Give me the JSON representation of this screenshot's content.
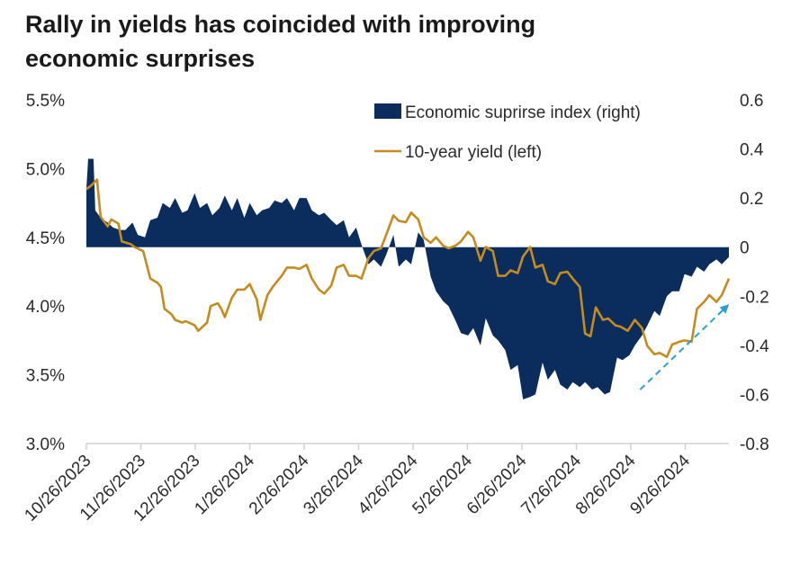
{
  "chart_data": {
    "type": "line",
    "title": "Rally in yields has coincided with improving economic surprises",
    "title_lines": [
      "Rally in yields has coincided with improving",
      "economic surprises"
    ],
    "x_tick_labels": [
      "10/26/2023",
      "11/26/2023",
      "12/26/2023",
      "1/26/2024",
      "2/26/2024",
      "3/26/2024",
      "4/26/2024",
      "5/26/2024",
      "6/26/2024",
      "7/26/2024",
      "8/26/2024",
      "9/26/2024"
    ],
    "x_range": [
      "2023-10-26",
      "2024-10-22"
    ],
    "y_left": {
      "label": "",
      "ticks": [
        "3.0%",
        "3.5%",
        "4.0%",
        "4.5%",
        "5.0%",
        "5.5%"
      ],
      "range": [
        3.0,
        5.5
      ]
    },
    "y_right": {
      "label": "",
      "ticks": [
        "-0.8",
        "-0.6",
        "-0.4",
        "-0.2",
        "0",
        "0.2",
        "0.4",
        "0.6"
      ],
      "range": [
        -0.8,
        0.6
      ]
    },
    "legend": {
      "placement": "top-right"
    },
    "grid": false,
    "series": [
      {
        "name": "Economic suprirse index (right)",
        "kind": "area",
        "axis": "right",
        "color": "#0b2d5e",
        "points": [
          [
            "2023-10-26",
            0.24
          ],
          [
            "2023-10-27",
            0.36
          ],
          [
            "2023-10-30",
            0.36
          ],
          [
            "2023-10-31",
            0.15
          ],
          [
            "2023-11-03",
            0.12
          ],
          [
            "2023-11-07",
            0.1
          ],
          [
            "2023-11-10",
            0.08
          ],
          [
            "2023-11-14",
            0.07
          ],
          [
            "2023-11-17",
            0.07
          ],
          [
            "2023-11-21",
            0.1
          ],
          [
            "2023-11-24",
            0.05
          ],
          [
            "2023-11-28",
            0.04
          ],
          [
            "2023-12-01",
            0.11
          ],
          [
            "2023-12-05",
            0.12
          ],
          [
            "2023-12-08",
            0.18
          ],
          [
            "2023-12-12",
            0.16
          ],
          [
            "2023-12-15",
            0.2
          ],
          [
            "2023-12-19",
            0.14
          ],
          [
            "2023-12-22",
            0.15
          ],
          [
            "2023-12-26",
            0.22
          ],
          [
            "2023-12-29",
            0.16
          ],
          [
            "2024-01-02",
            0.18
          ],
          [
            "2024-01-05",
            0.13
          ],
          [
            "2024-01-09",
            0.16
          ],
          [
            "2024-01-12",
            0.21
          ],
          [
            "2024-01-16",
            0.15
          ],
          [
            "2024-01-19",
            0.2
          ],
          [
            "2024-01-23",
            0.12
          ],
          [
            "2024-01-26",
            0.18
          ],
          [
            "2024-01-30",
            0.13
          ],
          [
            "2024-02-02",
            0.15
          ],
          [
            "2024-02-06",
            0.16
          ],
          [
            "2024-02-09",
            0.19
          ],
          [
            "2024-02-13",
            0.18
          ],
          [
            "2024-02-16",
            0.2
          ],
          [
            "2024-02-20",
            0.15
          ],
          [
            "2024-02-23",
            0.2
          ],
          [
            "2024-02-27",
            0.2
          ],
          [
            "2024-03-01",
            0.15
          ],
          [
            "2024-03-05",
            0.13
          ],
          [
            "2024-03-08",
            0.14
          ],
          [
            "2024-03-12",
            0.11
          ],
          [
            "2024-03-15",
            0.09
          ],
          [
            "2024-03-19",
            0.11
          ],
          [
            "2024-03-22",
            0.04
          ],
          [
            "2024-03-26",
            0.08
          ],
          [
            "2024-03-29",
            0.01
          ],
          [
            "2024-04-02",
            -0.07
          ],
          [
            "2024-04-05",
            -0.05
          ],
          [
            "2024-04-09",
            -0.08
          ],
          [
            "2024-04-12",
            -0.03
          ],
          [
            "2024-04-16",
            0.05
          ],
          [
            "2024-04-19",
            -0.08
          ],
          [
            "2024-04-23",
            -0.05
          ],
          [
            "2024-04-26",
            -0.07
          ],
          [
            "2024-04-30",
            0.06
          ],
          [
            "2024-05-03",
            0.03
          ],
          [
            "2024-05-07",
            -0.12
          ],
          [
            "2024-05-10",
            -0.18
          ],
          [
            "2024-05-14",
            -0.22
          ],
          [
            "2024-05-17",
            -0.24
          ],
          [
            "2024-05-21",
            -0.3
          ],
          [
            "2024-05-24",
            -0.35
          ],
          [
            "2024-05-28",
            -0.36
          ],
          [
            "2024-05-31",
            -0.33
          ],
          [
            "2024-06-04",
            -0.4
          ],
          [
            "2024-06-07",
            -0.29
          ],
          [
            "2024-06-11",
            -0.36
          ],
          [
            "2024-06-14",
            -0.38
          ],
          [
            "2024-06-18",
            -0.42
          ],
          [
            "2024-06-21",
            -0.5
          ],
          [
            "2024-06-25",
            -0.48
          ],
          [
            "2024-06-28",
            -0.62
          ],
          [
            "2024-07-02",
            -0.61
          ],
          [
            "2024-07-05",
            -0.6
          ],
          [
            "2024-07-09",
            -0.47
          ],
          [
            "2024-07-12",
            -0.54
          ],
          [
            "2024-07-16",
            -0.5
          ],
          [
            "2024-07-19",
            -0.56
          ],
          [
            "2024-07-23",
            -0.58
          ],
          [
            "2024-07-26",
            -0.55
          ],
          [
            "2024-07-30",
            -0.57
          ],
          [
            "2024-08-02",
            -0.55
          ],
          [
            "2024-08-06",
            -0.58
          ],
          [
            "2024-08-09",
            -0.57
          ],
          [
            "2024-08-13",
            -0.6
          ],
          [
            "2024-08-16",
            -0.59
          ],
          [
            "2024-08-20",
            -0.45
          ],
          [
            "2024-08-23",
            -0.46
          ],
          [
            "2024-08-27",
            -0.44
          ],
          [
            "2024-08-30",
            -0.4
          ],
          [
            "2024-09-03",
            -0.36
          ],
          [
            "2024-09-06",
            -0.32
          ],
          [
            "2024-09-10",
            -0.26
          ],
          [
            "2024-09-13",
            -0.28
          ],
          [
            "2024-09-17",
            -0.2
          ],
          [
            "2024-09-20",
            -0.18
          ],
          [
            "2024-09-24",
            -0.18
          ],
          [
            "2024-09-27",
            -0.11
          ],
          [
            "2024-10-01",
            -0.12
          ],
          [
            "2024-10-04",
            -0.08
          ],
          [
            "2024-10-08",
            -0.1
          ],
          [
            "2024-10-11",
            -0.07
          ],
          [
            "2024-10-15",
            -0.05
          ],
          [
            "2024-10-18",
            -0.07
          ],
          [
            "2024-10-22",
            -0.04
          ]
        ]
      },
      {
        "name": "10-year yield (left)",
        "kind": "line",
        "axis": "left",
        "color": "#c58b1c",
        "points": [
          [
            "2023-10-26",
            4.85
          ],
          [
            "2023-10-29",
            4.88
          ],
          [
            "2023-11-01",
            4.92
          ],
          [
            "2023-11-03",
            4.65
          ],
          [
            "2023-11-07",
            4.58
          ],
          [
            "2023-11-09",
            4.63
          ],
          [
            "2023-11-13",
            4.6
          ],
          [
            "2023-11-15",
            4.47
          ],
          [
            "2023-11-20",
            4.45
          ],
          [
            "2023-11-22",
            4.43
          ],
          [
            "2023-11-27",
            4.4
          ],
          [
            "2023-11-29",
            4.3
          ],
          [
            "2023-12-01",
            4.2
          ],
          [
            "2023-12-05",
            4.17
          ],
          [
            "2023-12-07",
            4.14
          ],
          [
            "2023-12-09",
            3.98
          ],
          [
            "2023-12-13",
            3.94
          ],
          [
            "2023-12-15",
            3.9
          ],
          [
            "2023-12-19",
            3.88
          ],
          [
            "2023-12-21",
            3.89
          ],
          [
            "2023-12-26",
            3.86
          ],
          [
            "2023-12-28",
            3.82
          ],
          [
            "2024-01-02",
            3.88
          ],
          [
            "2024-01-04",
            4.0
          ],
          [
            "2024-01-08",
            4.02
          ],
          [
            "2024-01-10",
            3.98
          ],
          [
            "2024-01-12",
            3.92
          ],
          [
            "2024-01-16",
            4.06
          ],
          [
            "2024-01-19",
            4.12
          ],
          [
            "2024-01-23",
            4.12
          ],
          [
            "2024-01-26",
            4.16
          ],
          [
            "2024-01-30",
            4.05
          ],
          [
            "2024-02-01",
            3.9
          ],
          [
            "2024-02-05",
            4.08
          ],
          [
            "2024-02-08",
            4.14
          ],
          [
            "2024-02-13",
            4.22
          ],
          [
            "2024-02-16",
            4.28
          ],
          [
            "2024-02-20",
            4.28
          ],
          [
            "2024-02-23",
            4.27
          ],
          [
            "2024-02-27",
            4.3
          ],
          [
            "2024-03-01",
            4.2
          ],
          [
            "2024-03-05",
            4.12
          ],
          [
            "2024-03-08",
            4.09
          ],
          [
            "2024-03-12",
            4.15
          ],
          [
            "2024-03-15",
            4.28
          ],
          [
            "2024-03-19",
            4.3
          ],
          [
            "2024-03-22",
            4.22
          ],
          [
            "2024-03-26",
            4.22
          ],
          [
            "2024-03-29",
            4.2
          ],
          [
            "2024-04-02",
            4.35
          ],
          [
            "2024-04-05",
            4.4
          ],
          [
            "2024-04-09",
            4.42
          ],
          [
            "2024-04-12",
            4.52
          ],
          [
            "2024-04-16",
            4.66
          ],
          [
            "2024-04-19",
            4.62
          ],
          [
            "2024-04-23",
            4.61
          ],
          [
            "2024-04-26",
            4.68
          ],
          [
            "2024-04-30",
            4.63
          ],
          [
            "2024-05-03",
            4.5
          ],
          [
            "2024-05-07",
            4.46
          ],
          [
            "2024-05-10",
            4.5
          ],
          [
            "2024-05-14",
            4.44
          ],
          [
            "2024-05-17",
            4.42
          ],
          [
            "2024-05-21",
            4.44
          ],
          [
            "2024-05-24",
            4.47
          ],
          [
            "2024-05-28",
            4.54
          ],
          [
            "2024-05-31",
            4.5
          ],
          [
            "2024-06-04",
            4.33
          ],
          [
            "2024-06-07",
            4.43
          ],
          [
            "2024-06-11",
            4.4
          ],
          [
            "2024-06-14",
            4.22
          ],
          [
            "2024-06-18",
            4.22
          ],
          [
            "2024-06-21",
            4.26
          ],
          [
            "2024-06-25",
            4.24
          ],
          [
            "2024-06-28",
            4.36
          ],
          [
            "2024-07-02",
            4.43
          ],
          [
            "2024-07-05",
            4.28
          ],
          [
            "2024-07-09",
            4.3
          ],
          [
            "2024-07-12",
            4.18
          ],
          [
            "2024-07-16",
            4.16
          ],
          [
            "2024-07-19",
            4.24
          ],
          [
            "2024-07-23",
            4.25
          ],
          [
            "2024-07-26",
            4.2
          ],
          [
            "2024-07-30",
            4.14
          ],
          [
            "2024-08-02",
            3.8
          ],
          [
            "2024-08-05",
            3.78
          ],
          [
            "2024-08-08",
            3.99
          ],
          [
            "2024-08-12",
            3.9
          ],
          [
            "2024-08-15",
            3.91
          ],
          [
            "2024-08-19",
            3.86
          ],
          [
            "2024-08-22",
            3.85
          ],
          [
            "2024-08-26",
            3.82
          ],
          [
            "2024-08-30",
            3.9
          ],
          [
            "2024-09-03",
            3.84
          ],
          [
            "2024-09-06",
            3.71
          ],
          [
            "2024-09-10",
            3.65
          ],
          [
            "2024-09-13",
            3.66
          ],
          [
            "2024-09-17",
            3.63
          ],
          [
            "2024-09-20",
            3.72
          ],
          [
            "2024-09-24",
            3.74
          ],
          [
            "2024-09-27",
            3.75
          ],
          [
            "2024-10-01",
            3.74
          ],
          [
            "2024-10-04",
            3.98
          ],
          [
            "2024-10-08",
            4.03
          ],
          [
            "2024-10-11",
            4.08
          ],
          [
            "2024-10-15",
            4.03
          ],
          [
            "2024-10-18",
            4.08
          ],
          [
            "2024-10-22",
            4.2
          ]
        ]
      }
    ],
    "annotations": [
      {
        "type": "arrow",
        "style": "dashed",
        "color": "#2a9fd6",
        "from": [
          "2024-09-02",
          -0.58
        ],
        "to": [
          "2024-10-21",
          -0.24
        ]
      }
    ]
  }
}
